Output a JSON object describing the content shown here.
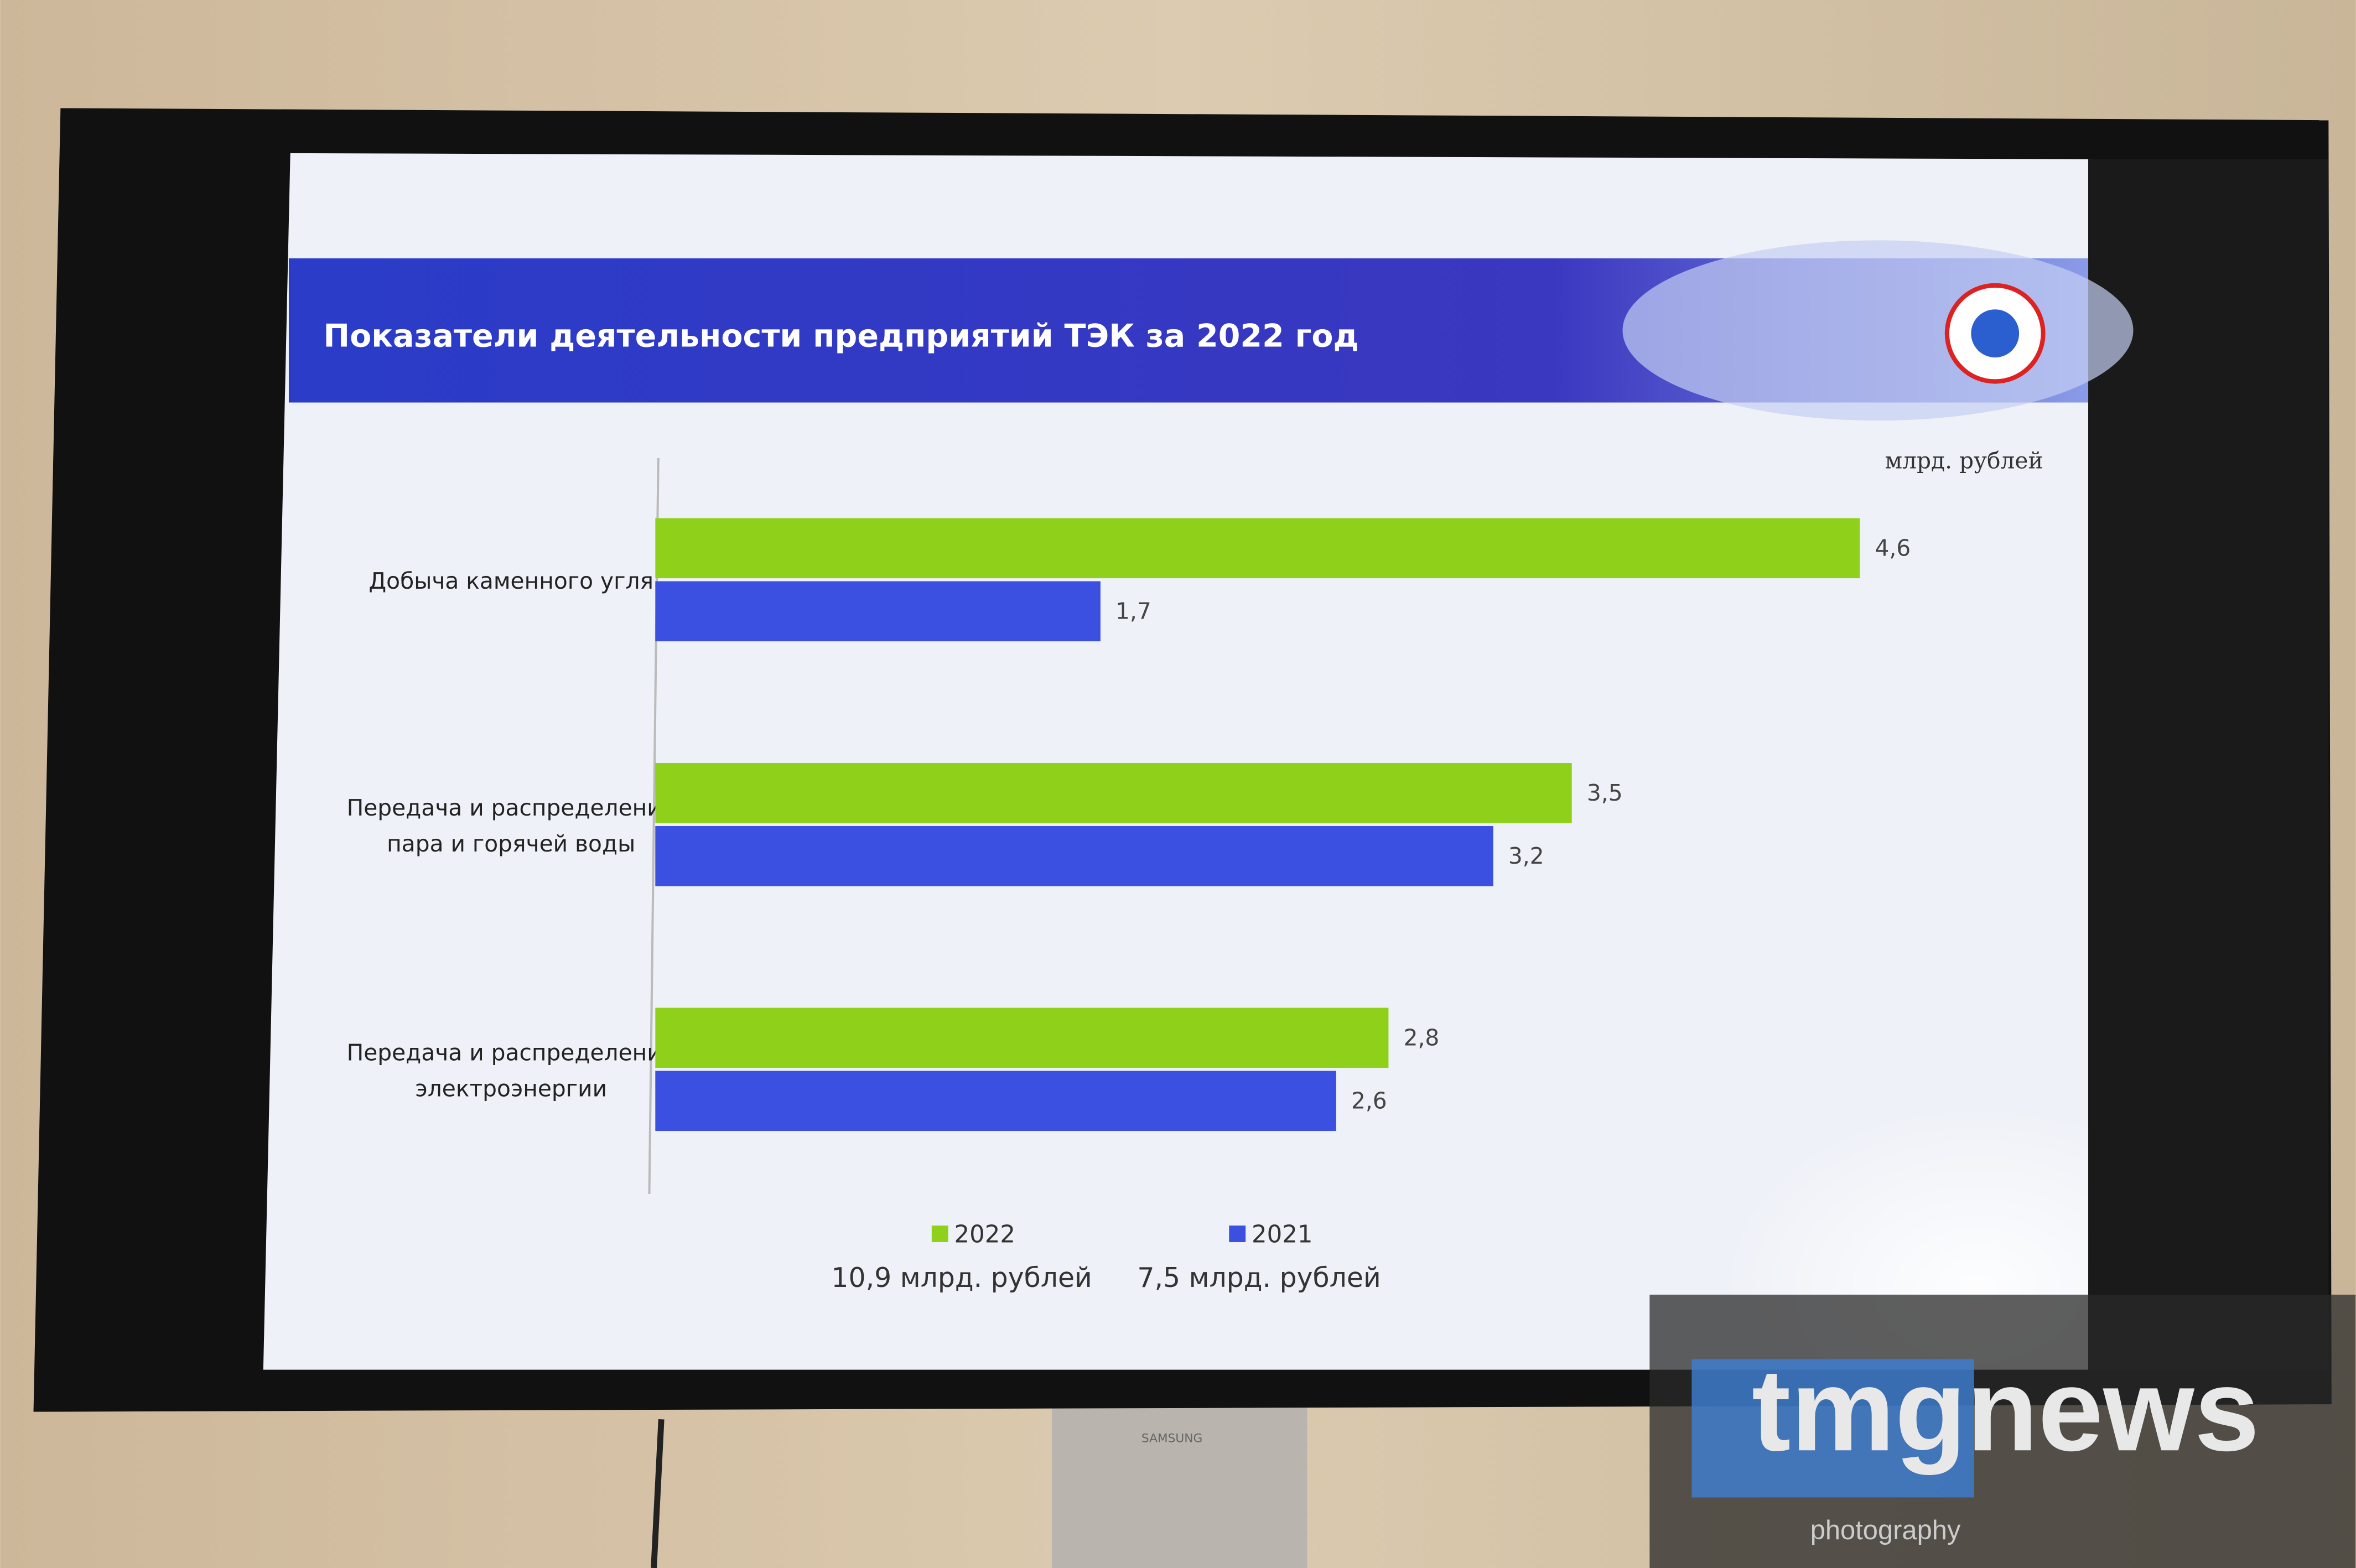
{
  "chart_data": {
    "type": "hbar",
    "title": "Показатели деятельности предприятий ТЭК за  2022 год",
    "unit_label": "млрд. рублей",
    "categories": [
      "Добыча каменного угля",
      "Передача и распределение пара и горячей воды",
      "Передача и распределение электроэнергии"
    ],
    "series": [
      {
        "name": "2022",
        "color": "#8fd11a",
        "values": [
          4.6,
          3.5,
          2.8
        ],
        "value_labels": [
          "4,6",
          "3,5",
          "2,8"
        ],
        "total_label": "10,9 млрд. рублей"
      },
      {
        "name": "2021",
        "color": "#3b4fe0",
        "values": [
          1.7,
          3.2,
          2.6
        ],
        "value_labels": [
          "1,7",
          "3,2",
          "2,6"
        ],
        "total_label": "7,5 млрд. рублей"
      }
    ],
    "xlim": [
      0,
      5.3
    ],
    "legend": "bottom"
  },
  "watermark": {
    "brand": "tmgnews",
    "subtitle": "photography"
  },
  "device": {
    "brand": "SAMSUNG"
  }
}
